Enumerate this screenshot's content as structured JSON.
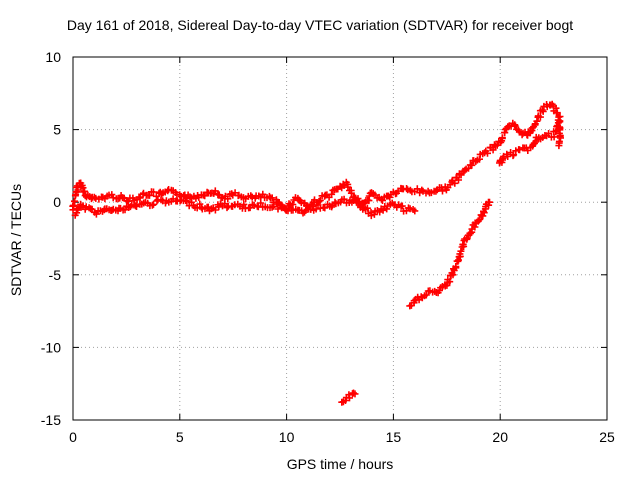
{
  "chart_data": {
    "type": "scatter",
    "title": "Day 161 of 2018, Sidereal Day-to-day VTEC variation (SDTVAR) for receiver bogt",
    "xlabel": "GPS time / hours",
    "ylabel": "SDTVAR / TECUs",
    "xlim": [
      0,
      25
    ],
    "ylim": [
      -15,
      10
    ],
    "xticks": [
      0,
      5,
      10,
      15,
      20,
      25
    ],
    "yticks": [
      -15,
      -10,
      -5,
      0,
      5,
      10
    ],
    "grid": true,
    "marker": "+",
    "color": "#ff0000",
    "series": [
      {
        "name": "main-trace",
        "x": [
          0.0,
          0.1,
          0.2,
          0.3,
          0.4,
          0.5,
          0.7,
          1.0,
          1.3,
          1.6,
          2.0,
          2.5,
          3.0,
          3.5,
          4.0,
          4.5,
          5.0,
          5.5,
          6.0,
          6.5,
          7.0,
          7.5,
          8.0,
          8.5,
          9.0,
          9.5,
          10.0,
          10.5,
          11.0,
          11.5,
          12.0,
          12.5,
          12.8,
          13.2,
          13.6,
          14.0,
          14.5,
          15.0,
          15.5,
          16.0,
          16.5,
          17.0,
          17.5,
          18.0,
          18.5,
          19.0,
          19.5,
          20.0,
          20.3,
          20.6,
          21.0,
          21.3,
          21.6,
          22.0,
          22.3,
          22.6,
          22.8
        ],
        "y": [
          -0.5,
          0.3,
          1.0,
          1.3,
          1.2,
          0.8,
          0.4,
          0.2,
          0.3,
          0.4,
          0.4,
          0.2,
          0.3,
          0.6,
          0.5,
          0.7,
          0.6,
          0.3,
          0.5,
          0.8,
          0.3,
          0.5,
          0.4,
          0.3,
          0.4,
          0.0,
          -0.4,
          0.3,
          -0.3,
          0.2,
          0.5,
          1.0,
          1.2,
          0.3,
          -0.3,
          0.6,
          0.2,
          0.6,
          0.9,
          0.8,
          0.7,
          0.8,
          1.0,
          1.6,
          2.4,
          3.1,
          3.6,
          4.2,
          5.0,
          5.3,
          4.8,
          4.6,
          5.4,
          6.4,
          6.8,
          6.3,
          5.9
        ]
      },
      {
        "name": "lower-branch",
        "x": [
          0.1,
          0.4,
          0.8,
          1.2,
          1.6,
          2.0,
          2.5,
          3.0,
          4.0,
          5.0,
          6.0,
          6.5,
          7.0,
          8.0,
          9.0,
          10.0,
          10.5,
          11.0,
          12.0,
          12.5,
          13.0,
          13.5,
          14.0,
          14.5,
          15.0,
          15.5,
          16.0
        ],
        "y": [
          -0.9,
          -0.2,
          -0.6,
          -0.7,
          -0.3,
          -0.6,
          -0.4,
          -0.2,
          0.0,
          0.1,
          -0.3,
          -0.5,
          -0.2,
          -0.3,
          -0.2,
          -0.4,
          -0.7,
          -0.5,
          -0.2,
          0.0,
          0.1,
          -0.3,
          -0.8,
          -0.5,
          -0.1,
          -0.5,
          -0.6
        ]
      },
      {
        "name": "rising-arc",
        "x": [
          15.8,
          16.0,
          16.3,
          16.6,
          17.0,
          17.4,
          17.7,
          18.0,
          18.2,
          18.4,
          18.6,
          18.8,
          19.0,
          19.2,
          19.35,
          19.5
        ],
        "y": [
          -7.2,
          -6.9,
          -6.5,
          -6.2,
          -6.2,
          -5.9,
          -5.1,
          -4.1,
          -3.2,
          -2.5,
          -2.0,
          -1.6,
          -1.2,
          -0.8,
          -0.4,
          0.0
        ]
      },
      {
        "name": "isolated-cluster",
        "x": [
          12.6,
          12.75,
          12.9,
          13.05,
          13.2
        ],
        "y": [
          -13.8,
          -13.6,
          -13.4,
          -13.3,
          -13.2
        ]
      },
      {
        "name": "right-cluster",
        "x": [
          20.0,
          20.05,
          20.1,
          21.5,
          21.6,
          21.7,
          21.8,
          22.5,
          22.6,
          22.7,
          22.8,
          22.8,
          22.75
        ],
        "y": [
          2.6,
          2.9,
          3.1,
          3.8,
          4.0,
          4.3,
          4.5,
          4.6,
          4.9,
          5.4,
          5.6,
          4.3,
          3.9
        ]
      }
    ]
  }
}
